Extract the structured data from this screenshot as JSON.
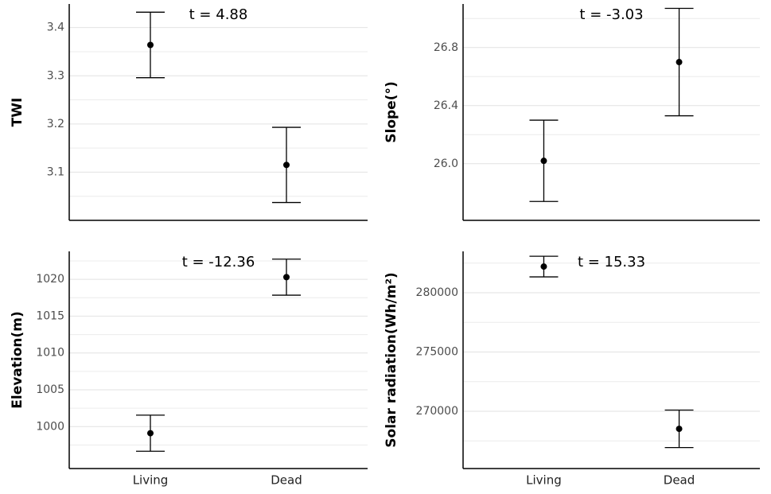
{
  "chart_data": [
    {
      "type": "errorbar",
      "ylabel": "TWI",
      "annotation": "t = 4.88",
      "values": [
        3.364,
        3.115
      ],
      "errors": [
        0.068,
        0.078
      ],
      "color": "#000000",
      "ylim": [
        3.0,
        3.449
      ],
      "yticks": [
        3.1,
        3.2,
        3.3,
        3.4
      ],
      "yminor": [
        3.05,
        3.15,
        3.25,
        3.35,
        3.45
      ],
      "grid": true
    },
    {
      "type": "errorbar",
      "ylabel": "Slope(°)",
      "annotation": "t = -3.03",
      "values": [
        26.02,
        26.7
      ],
      "errors": [
        0.28,
        0.37
      ],
      "color": "#000000",
      "ylim": [
        25.61,
        27.1
      ],
      "yticks": [
        {
          "value": 26.0,
          "label": "26.0"
        },
        26.4,
        26.8
      ],
      "yminor": [
        26.2,
        26.6,
        27.0
      ],
      "grid": true
    },
    {
      "type": "errorbar",
      "ylabel": "Elevation(m)",
      "annotation": "t = -12.36",
      "categories": [
        "Living",
        "Dead"
      ],
      "values": [
        999.1,
        1020.3
      ],
      "errors": [
        2.45,
        2.45
      ],
      "color": "#000000",
      "ylim": [
        994.3,
        1023.8
      ],
      "yticks": [
        1000,
        1005,
        1010,
        1015,
        1020
      ],
      "yminor": [
        997.5,
        1002.5,
        1007.5,
        1012.5,
        1017.5,
        1022.5
      ],
      "grid": true
    },
    {
      "type": "errorbar",
      "ylabel": "Solar radiation(Wh/m²)",
      "annotation": "t = 15.33",
      "categories": [
        "Living",
        "Dead"
      ],
      "values": [
        282210,
        268520
      ],
      "errors": [
        870,
        1580
      ],
      "color": "#000000",
      "ylim": [
        265170,
        283490
      ],
      "yticks": [
        270000,
        275000,
        280000
      ],
      "yminor": [
        267500,
        272500,
        277500,
        282500
      ],
      "grid": true
    }
  ]
}
